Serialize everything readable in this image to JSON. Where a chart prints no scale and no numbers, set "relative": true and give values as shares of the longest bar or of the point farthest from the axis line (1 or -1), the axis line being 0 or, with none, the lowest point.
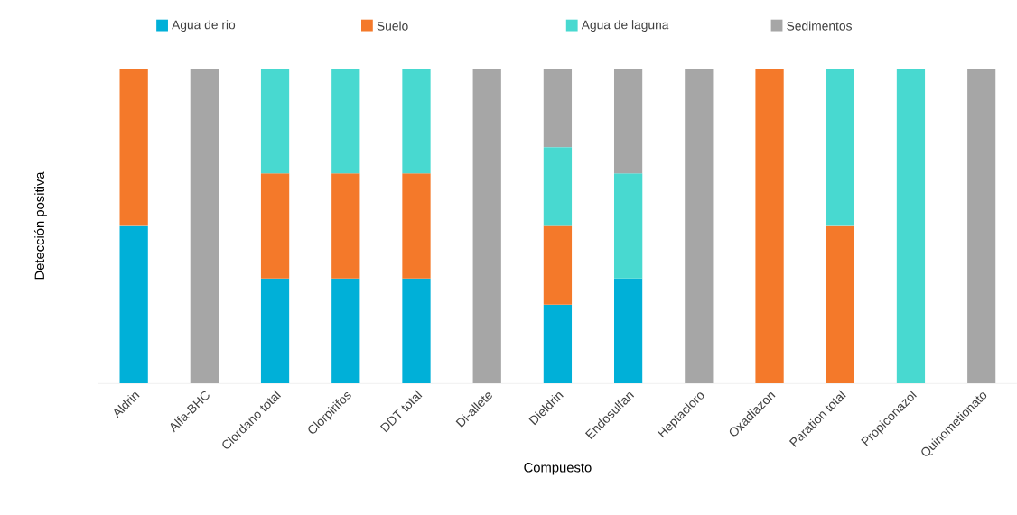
{
  "chart_data": {
    "type": "bar",
    "stacked": true,
    "relative": true,
    "xlabel": "Compuesto",
    "ylabel": "Detección positiva",
    "legend": "top",
    "categories": [
      "Aldrin",
      "Alfa-BHC",
      "Clordano total",
      "Clorpirifos",
      "DDT total",
      "Di-allete",
      "Dieldrin",
      "Endosulfan",
      "Heptacloro",
      "Oxadiazon",
      "Paration total",
      "Propiconazol",
      "Quinometionato"
    ],
    "series": [
      {
        "name": "Agua de rio",
        "color": "#00b0d8",
        "values": [
          0.5,
          0,
          0.3333,
          0.3333,
          0.3333,
          0,
          0.25,
          0.3333,
          0,
          0,
          0,
          0,
          0
        ]
      },
      {
        "name": "Suelo",
        "color": "#f4792a",
        "values": [
          0.5,
          0,
          0.3333,
          0.3333,
          0.3333,
          0,
          0.25,
          0,
          0,
          1,
          0.5,
          0,
          0
        ]
      },
      {
        "name": "Agua de laguna",
        "color": "#48d9d0",
        "values": [
          0,
          0,
          0.3333,
          0.3333,
          0.3333,
          0,
          0.25,
          0.3333,
          0,
          0,
          0.5,
          1,
          0
        ]
      },
      {
        "name": "Sedimentos",
        "color": "#a6a6a6",
        "values": [
          0,
          1,
          0,
          0,
          0,
          1,
          0.25,
          0.3333,
          1,
          0,
          0,
          0,
          1
        ]
      }
    ]
  }
}
